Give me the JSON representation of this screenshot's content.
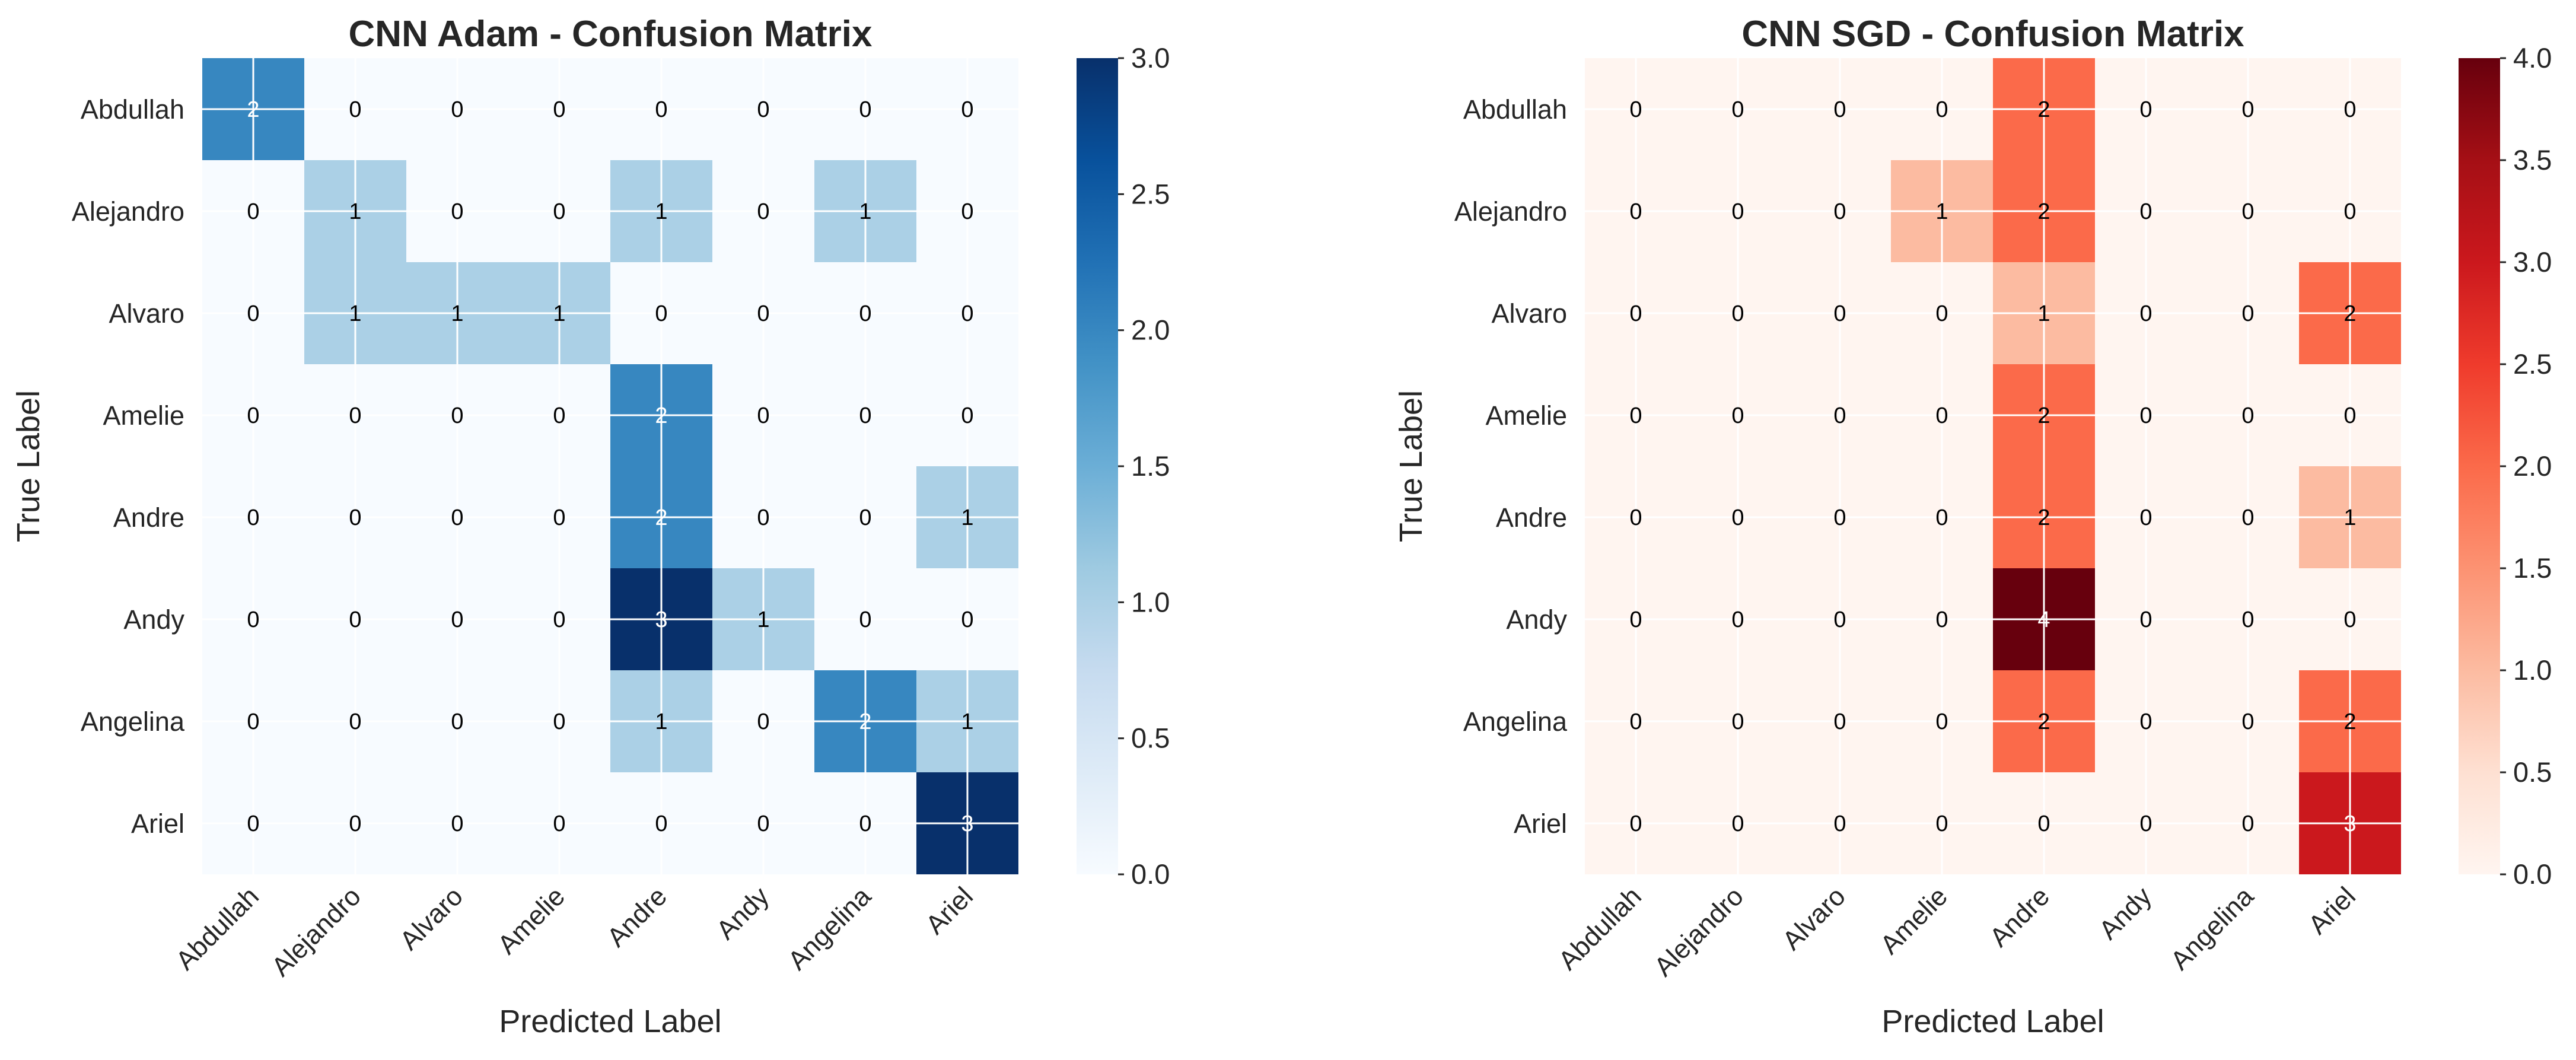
{
  "chart_data": [
    {
      "type": "heatmap",
      "title": "CNN Adam - Confusion Matrix",
      "xlabel": "Predicted Label",
      "ylabel": "True Label",
      "x_categories": [
        "Abdullah",
        "Alejandro",
        "Alvaro",
        "Amelie",
        "Andre",
        "Andy",
        "Angelina",
        "Ariel"
      ],
      "y_categories": [
        "Abdullah",
        "Alejandro",
        "Alvaro",
        "Amelie",
        "Andre",
        "Andy",
        "Angelina",
        "Ariel"
      ],
      "values": [
        [
          2,
          0,
          0,
          0,
          0,
          0,
          0,
          0
        ],
        [
          0,
          1,
          0,
          0,
          1,
          0,
          1,
          0
        ],
        [
          0,
          1,
          1,
          1,
          0,
          0,
          0,
          0
        ],
        [
          0,
          0,
          0,
          0,
          2,
          0,
          0,
          0
        ],
        [
          0,
          0,
          0,
          0,
          2,
          0,
          0,
          1
        ],
        [
          0,
          0,
          0,
          0,
          3,
          1,
          0,
          0
        ],
        [
          0,
          0,
          0,
          0,
          1,
          0,
          2,
          1
        ],
        [
          0,
          0,
          0,
          0,
          0,
          0,
          0,
          3
        ]
      ],
      "colormap": "Blues",
      "colors": [
        "#f7fbff",
        "#deebf7",
        "#c6dbef",
        "#9ecae1",
        "#6baed6",
        "#4292c6",
        "#2171b5",
        "#08519c",
        "#08306b"
      ],
      "vmin": 0,
      "vmax": 3,
      "colorbar_ticks": [
        "0.0",
        "0.5",
        "1.0",
        "1.5",
        "2.0",
        "2.5",
        "3.0"
      ],
      "grid": true
    },
    {
      "type": "heatmap",
      "title": "CNN SGD - Confusion Matrix",
      "xlabel": "Predicted Label",
      "ylabel": "True Label",
      "x_categories": [
        "Abdullah",
        "Alejandro",
        "Alvaro",
        "Amelie",
        "Andre",
        "Andy",
        "Angelina",
        "Ariel"
      ],
      "y_categories": [
        "Abdullah",
        "Alejandro",
        "Alvaro",
        "Amelie",
        "Andre",
        "Andy",
        "Angelina",
        "Ariel"
      ],
      "values": [
        [
          0,
          0,
          0,
          0,
          2,
          0,
          0,
          0
        ],
        [
          0,
          0,
          0,
          1,
          2,
          0,
          0,
          0
        ],
        [
          0,
          0,
          0,
          0,
          1,
          0,
          0,
          2
        ],
        [
          0,
          0,
          0,
          0,
          2,
          0,
          0,
          0
        ],
        [
          0,
          0,
          0,
          0,
          2,
          0,
          0,
          1
        ],
        [
          0,
          0,
          0,
          0,
          4,
          0,
          0,
          0
        ],
        [
          0,
          0,
          0,
          0,
          2,
          0,
          0,
          2
        ],
        [
          0,
          0,
          0,
          0,
          0,
          0,
          0,
          3
        ]
      ],
      "colormap": "Reds",
      "colors": [
        "#fff5f0",
        "#fee0d2",
        "#fcbba1",
        "#fc9272",
        "#fb6a4a",
        "#ef3b2c",
        "#cb181d",
        "#a50f15",
        "#67000d"
      ],
      "vmin": 0,
      "vmax": 4,
      "colorbar_ticks": [
        "0.0",
        "0.5",
        "1.0",
        "1.5",
        "2.0",
        "2.5",
        "3.0",
        "3.5",
        "4.0"
      ],
      "grid": true
    }
  ]
}
